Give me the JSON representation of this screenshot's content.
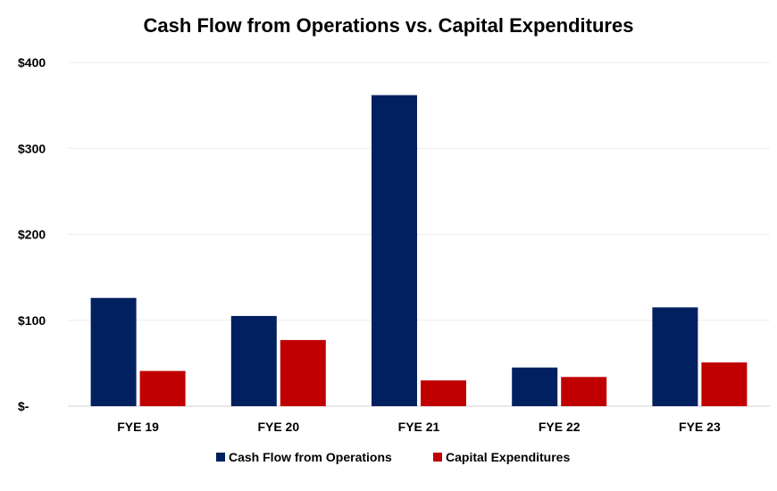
{
  "chart_data": {
    "type": "bar",
    "title": "Cash Flow from Operations vs. Capital Expenditures",
    "categories": [
      "FYE 19",
      "FYE 20",
      "FYE 21",
      "FYE 22",
      "FYE 23"
    ],
    "series": [
      {
        "name": "Cash Flow from Operations",
        "color": "#002060",
        "values": [
          126,
          105,
          362,
          45,
          115
        ]
      },
      {
        "name": "Capital Expenditures",
        "color": "#C00000",
        "values": [
          41,
          77,
          30,
          34,
          51
        ]
      }
    ],
    "ylim": [
      0,
      400
    ],
    "yticks": [
      0,
      100,
      200,
      300,
      400
    ],
    "ytick_labels": [
      "$-",
      "$100",
      "$200",
      "$300",
      "$400"
    ],
    "grid": true,
    "legend": "bottom"
  }
}
